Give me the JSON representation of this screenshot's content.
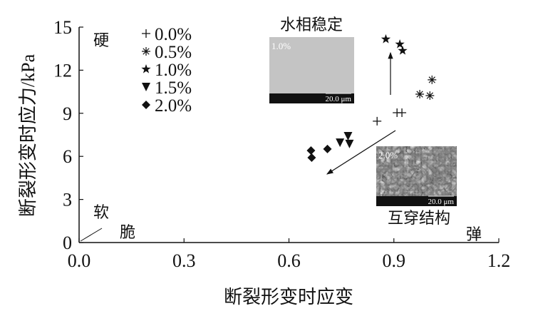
{
  "chart_data": {
    "type": "scatter",
    "xlabel": "断裂形变时应变",
    "ylabel": "断裂形变时应力/kPa",
    "xlim": [
      0,
      1.2
    ],
    "ylim": [
      0,
      15
    ],
    "xticks": [
      "0.0",
      "0.3",
      "0.6",
      "0.9",
      "1.2"
    ],
    "xtick_values": [
      0,
      0.3,
      0.6,
      0.9,
      1.2
    ],
    "yticks": [
      "0",
      "3",
      "6",
      "9",
      "12",
      "15"
    ],
    "ytick_values": [
      0,
      3,
      6,
      9,
      12,
      15
    ],
    "grid": false,
    "legend_position": "top-left",
    "series": [
      {
        "name": "0.0%",
        "marker": "+",
        "points": [
          [
            0.852,
            8.45
          ],
          [
            0.909,
            9.04
          ],
          [
            0.923,
            9.04
          ]
        ]
      },
      {
        "name": "0.5%",
        "marker": "*",
        "points": [
          [
            1.009,
            11.33
          ],
          [
            0.974,
            10.33
          ],
          [
            1.003,
            10.23
          ]
        ]
      },
      {
        "name": "1.0%",
        "marker": "★",
        "points": [
          [
            0.877,
            14.16
          ],
          [
            0.917,
            13.81
          ],
          [
            0.925,
            13.36
          ]
        ]
      },
      {
        "name": "1.5%",
        "marker": "▼",
        "points": [
          [
            0.746,
            6.95
          ],
          [
            0.769,
            7.4
          ],
          [
            0.773,
            6.86
          ]
        ]
      },
      {
        "name": "2.0%",
        "marker": "◆",
        "points": [
          [
            0.663,
            6.41
          ],
          [
            0.665,
            5.91
          ],
          [
            0.71,
            6.51
          ]
        ]
      }
    ],
    "annotations": {
      "hard": "硬",
      "soft": "软",
      "brittle": "脆",
      "elastic": "弹",
      "aqueous_stable": "水相稳定",
      "interpenetrating": "互穿结构"
    },
    "insets": [
      {
        "label": "1.0%",
        "scale": "20.0 μm"
      },
      {
        "label": "2.0%",
        "scale": "20.0 μm"
      }
    ],
    "colors": {
      "ink": "#111111"
    }
  }
}
